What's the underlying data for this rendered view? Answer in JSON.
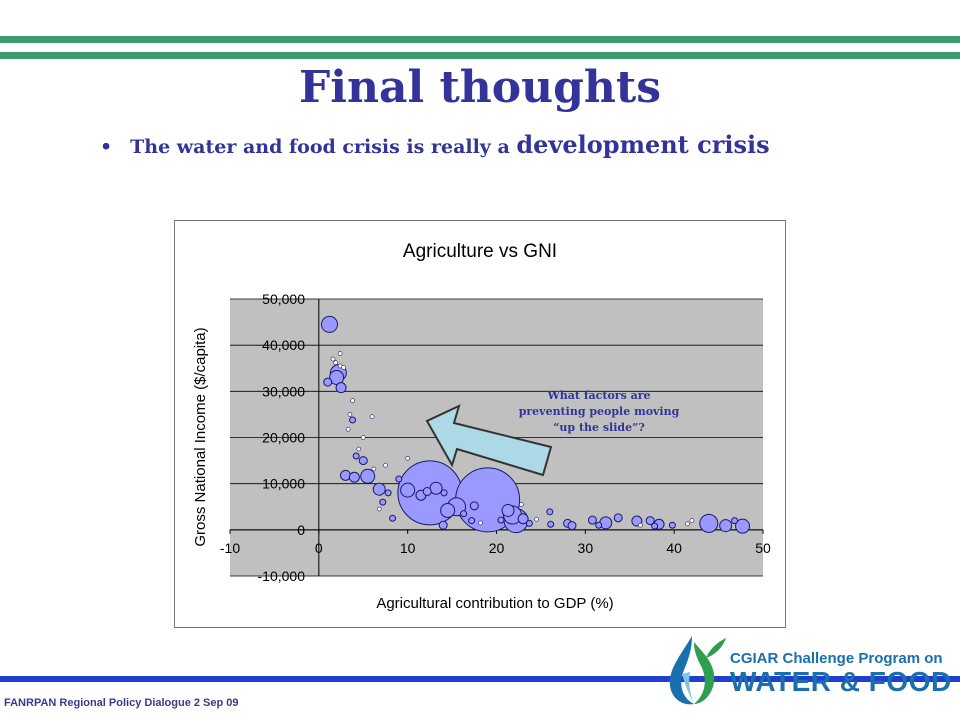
{
  "slide": {
    "title": "Final thoughts",
    "bullet_dot": "•",
    "bullet_text": "The water and food crisis is really a ",
    "bullet_emphasis": "development crisis",
    "footer": "FANRPAN Regional Policy Dialogue 2 Sep 09"
  },
  "logo": {
    "line1": "CGIAR Challenge Program on",
    "line2": "WATER & FOOD"
  },
  "colors": {
    "title": "#33339a",
    "bar_green": "#3e9a6e",
    "bar_blue": "#1f3fd0",
    "plot_bg": "#c0c0c0",
    "bubble_fill": "#9999ff",
    "bubble_stroke": "#1a1a66",
    "arrow_fill": "#add8e6"
  },
  "chart_data": {
    "type": "scatter",
    "title": "Agriculture vs GNI",
    "xlabel": "Agricultural contribution to GDP (%)",
    "ylabel": "Gross National Income ($/capita)",
    "xlim": [
      -10,
      50
    ],
    "ylim": [
      -10000,
      50000
    ],
    "xticks": [
      "-10",
      "0",
      "10",
      "20",
      "30",
      "40",
      "50"
    ],
    "yticks": [
      "50,000",
      "40,000",
      "30,000",
      "20,000",
      "10,000",
      "0",
      "-10,000"
    ],
    "grid": "horizontal",
    "annotation": {
      "lines": [
        "What factors are",
        "preventing people moving",
        "“up the slide”?"
      ]
    },
    "bubble_encoding": "size = third variable (relative)",
    "points": [
      {
        "x": 1.2,
        "y": 44500,
        "size": 8
      },
      {
        "x": 2.2,
        "y": 34000,
        "size": 8
      },
      {
        "x": 2.0,
        "y": 33000,
        "size": 7
      },
      {
        "x": 1.0,
        "y": 32000,
        "size": 4
      },
      {
        "x": 2.5,
        "y": 30800,
        "size": 5
      },
      {
        "x": 1.6,
        "y": 37000,
        "size": 2
      },
      {
        "x": 2.4,
        "y": 35500,
        "size": 2
      },
      {
        "x": 1.9,
        "y": 36200,
        "size": 2
      },
      {
        "x": 2.8,
        "y": 35200,
        "size": 2
      },
      {
        "x": 2.4,
        "y": 38200,
        "size": 2
      },
      {
        "x": 3.8,
        "y": 28000,
        "size": 2
      },
      {
        "x": 3.5,
        "y": 25000,
        "size": 2
      },
      {
        "x": 3.8,
        "y": 23800,
        "size": 3
      },
      {
        "x": 6.0,
        "y": 24500,
        "size": 2
      },
      {
        "x": 3.3,
        "y": 21800,
        "size": 2
      },
      {
        "x": 5.0,
        "y": 20000,
        "size": 2
      },
      {
        "x": 4.5,
        "y": 17500,
        "size": 2
      },
      {
        "x": 4.2,
        "y": 16000,
        "size": 3
      },
      {
        "x": 5.0,
        "y": 15000,
        "size": 4
      },
      {
        "x": 3.0,
        "y": 11800,
        "size": 5
      },
      {
        "x": 4.0,
        "y": 11400,
        "size": 5
      },
      {
        "x": 5.5,
        "y": 11600,
        "size": 7
      },
      {
        "x": 6.2,
        "y": 13200,
        "size": 2
      },
      {
        "x": 7.5,
        "y": 14000,
        "size": 2
      },
      {
        "x": 6.8,
        "y": 8800,
        "size": 6
      },
      {
        "x": 7.8,
        "y": 8000,
        "size": 3
      },
      {
        "x": 7.2,
        "y": 6000,
        "size": 3
      },
      {
        "x": 6.8,
        "y": 4500,
        "size": 2
      },
      {
        "x": 8.3,
        "y": 2500,
        "size": 3
      },
      {
        "x": 9.0,
        "y": 11000,
        "size": 3
      },
      {
        "x": 10.0,
        "y": 15500,
        "size": 2
      },
      {
        "x": 12.5,
        "y": 8000,
        "size": 32
      },
      {
        "x": 19.0,
        "y": 6500,
        "size": 32
      },
      {
        "x": 10.0,
        "y": 8600,
        "size": 7
      },
      {
        "x": 11.5,
        "y": 7500,
        "size": 5
      },
      {
        "x": 12.2,
        "y": 8300,
        "size": 4
      },
      {
        "x": 13.2,
        "y": 9000,
        "size": 6
      },
      {
        "x": 14.1,
        "y": 8000,
        "size": 3
      },
      {
        "x": 14.5,
        "y": 4200,
        "size": 7
      },
      {
        "x": 15.5,
        "y": 5000,
        "size": 9
      },
      {
        "x": 14.0,
        "y": 1000,
        "size": 4
      },
      {
        "x": 16.3,
        "y": 3500,
        "size": 3
      },
      {
        "x": 17.5,
        "y": 5200,
        "size": 4
      },
      {
        "x": 17.2,
        "y": 2000,
        "size": 3
      },
      {
        "x": 18.2,
        "y": 1500,
        "size": 2
      },
      {
        "x": 20.5,
        "y": 2100,
        "size": 3
      },
      {
        "x": 21.8,
        "y": 3200,
        "size": 9
      },
      {
        "x": 22.2,
        "y": 2000,
        "size": 12
      },
      {
        "x": 21.3,
        "y": 4200,
        "size": 6
      },
      {
        "x": 23.0,
        "y": 2400,
        "size": 5
      },
      {
        "x": 23.7,
        "y": 1400,
        "size": 3
      },
      {
        "x": 22.8,
        "y": 5500,
        "size": 2
      },
      {
        "x": 24.5,
        "y": 2300,
        "size": 2
      },
      {
        "x": 26.0,
        "y": 3900,
        "size": 3
      },
      {
        "x": 26.1,
        "y": 1200,
        "size": 3
      },
      {
        "x": 28.0,
        "y": 1400,
        "size": 4
      },
      {
        "x": 28.5,
        "y": 900,
        "size": 4
      },
      {
        "x": 30.8,
        "y": 2100,
        "size": 4
      },
      {
        "x": 31.5,
        "y": 1000,
        "size": 3
      },
      {
        "x": 32.3,
        "y": 1500,
        "size": 6
      },
      {
        "x": 33.7,
        "y": 2600,
        "size": 4
      },
      {
        "x": 35.8,
        "y": 1900,
        "size": 5
      },
      {
        "x": 36.2,
        "y": 1000,
        "size": 2
      },
      {
        "x": 37.3,
        "y": 2000,
        "size": 4
      },
      {
        "x": 38.3,
        "y": 1200,
        "size": 5
      },
      {
        "x": 37.8,
        "y": 800,
        "size": 3
      },
      {
        "x": 39.8,
        "y": 1000,
        "size": 3
      },
      {
        "x": 41.5,
        "y": 1300,
        "size": 2
      },
      {
        "x": 42.0,
        "y": 2000,
        "size": 2
      },
      {
        "x": 43.9,
        "y": 1400,
        "size": 9
      },
      {
        "x": 45.8,
        "y": 900,
        "size": 6
      },
      {
        "x": 46.8,
        "y": 2000,
        "size": 3
      },
      {
        "x": 47.7,
        "y": 800,
        "size": 7
      }
    ]
  }
}
